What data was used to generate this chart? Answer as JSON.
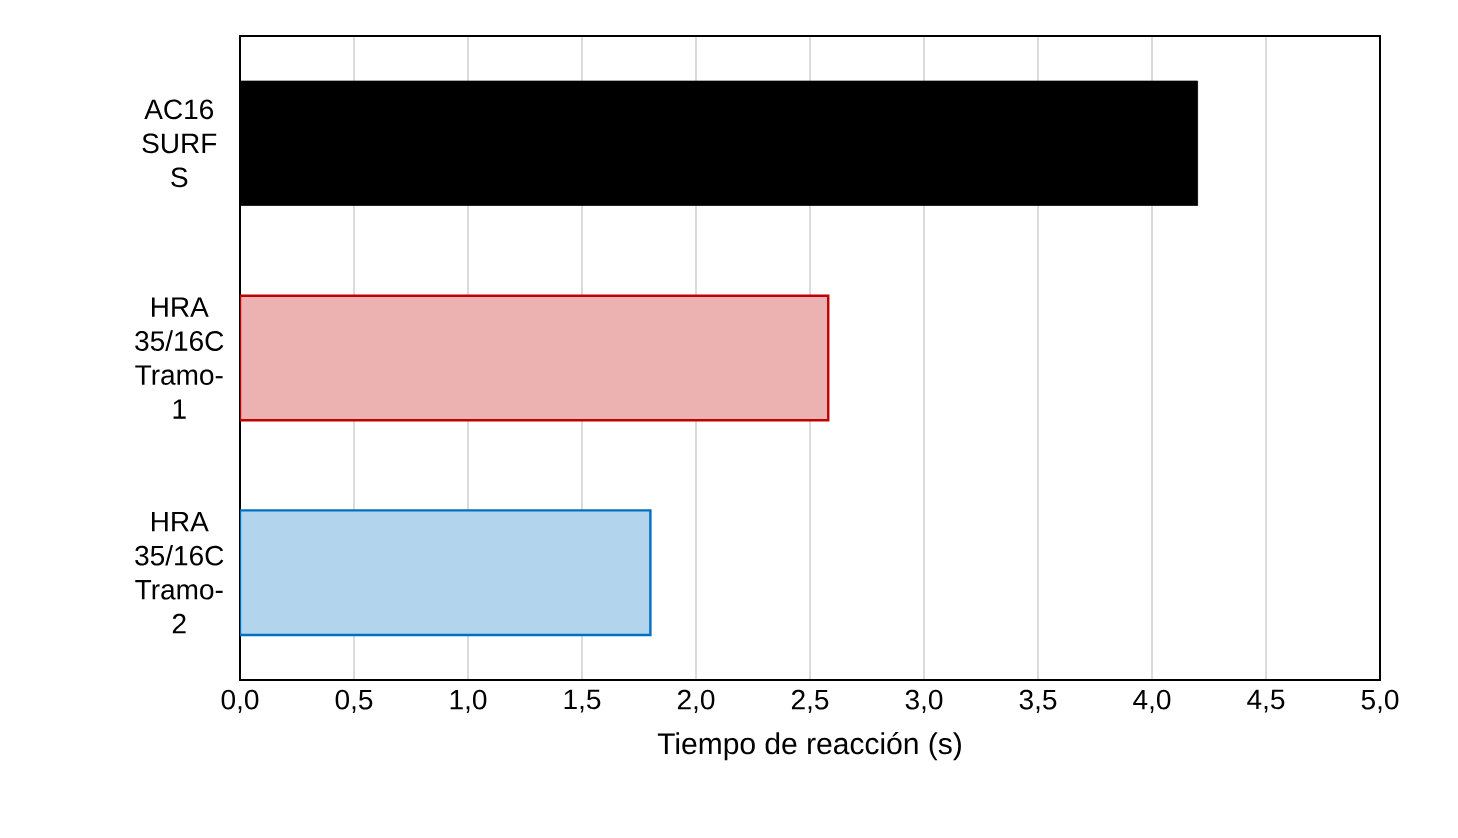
{
  "chart_data": {
    "type": "bar",
    "orientation": "horizontal",
    "xlabel": "Tiempo de reacción (s)",
    "categories": [
      "AC16 SURF S",
      "HRA 35/16C Tramo-1",
      "HRA 35/16C Tramo-2"
    ],
    "values": [
      4.2,
      2.58,
      1.8
    ],
    "colors": [
      "#000000",
      "#c00000",
      "#0070c0"
    ],
    "xlim": [
      0,
      5
    ],
    "xticks": [
      {
        "value": 0,
        "label": "0,0"
      },
      {
        "value": 0.5,
        "label": "0,5"
      },
      {
        "value": 1,
        "label": "1,0"
      },
      {
        "value": 1.5,
        "label": "1,5"
      },
      {
        "value": 2,
        "label": "2,0"
      },
      {
        "value": 2.5,
        "label": "2,5"
      },
      {
        "value": 3,
        "label": "3,0"
      },
      {
        "value": 3.5,
        "label": "3,5"
      },
      {
        "value": 4,
        "label": "4,0"
      },
      {
        "value": 4.5,
        "label": "4,5"
      },
      {
        "value": 5,
        "label": "5,0"
      }
    ],
    "grid": "x"
  }
}
